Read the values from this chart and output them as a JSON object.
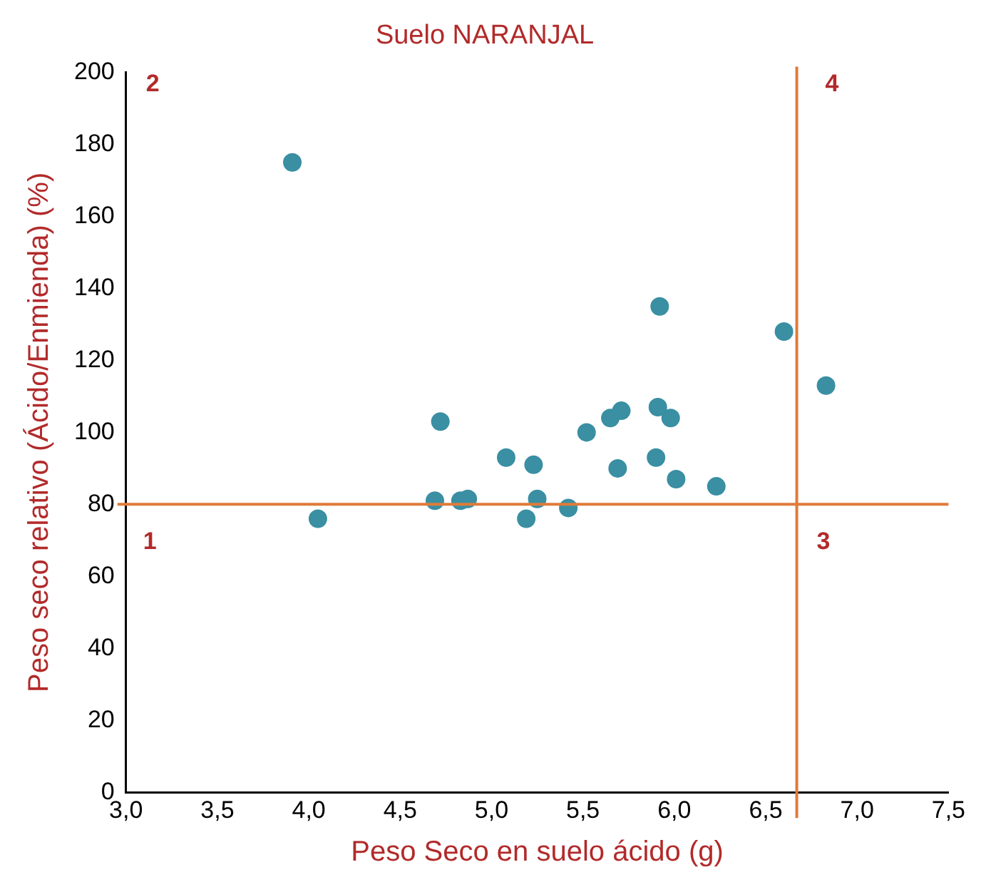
{
  "chart_data": {
    "type": "scatter",
    "title": "Suelo NARANJAL",
    "xlabel": "Peso Seco en suelo ácido (g)",
    "ylabel": "Peso seco relativo (Ácido/Enmienda) (%)",
    "series": [
      {
        "color": "#3a8fa3",
        "x": [
          3.91,
          4.05,
          4.69,
          4.72,
          4.83,
          4.87,
          5.08,
          5.19,
          5.23,
          5.25,
          5.42,
          5.52,
          5.65,
          5.69,
          5.71,
          5.92,
          5.9,
          5.91,
          5.98,
          6.01,
          6.23,
          6.6,
          6.83
        ],
        "values": [
          175,
          76,
          81,
          103,
          81,
          81.5,
          93,
          76,
          91,
          81.5,
          79,
          100,
          104,
          90,
          106,
          135,
          93,
          107,
          104,
          87,
          85,
          128,
          113
        ]
      }
    ],
    "xlim": [
      3.0,
      7.5
    ],
    "xticks": [
      {
        "value": 3.0,
        "label": "3,0"
      },
      {
        "value": 3.5,
        "label": "3,5"
      },
      {
        "value": 4.0,
        "label": "4,0"
      },
      {
        "value": 4.5,
        "label": "4,5"
      },
      {
        "value": 5.0,
        "label": "5,0"
      },
      {
        "value": 5.5,
        "label": "5,5"
      },
      {
        "value": 6.0,
        "label": "6,0"
      },
      {
        "value": 6.5,
        "label": "6,5"
      },
      {
        "value": 7.0,
        "label": "7,0"
      },
      {
        "value": 7.5,
        "label": "7,5"
      }
    ],
    "ylim": [
      0,
      200
    ],
    "yticks": [
      0,
      20,
      40,
      60,
      80,
      100,
      120,
      140,
      160,
      180,
      200
    ],
    "ref_lines": [
      {
        "axis": "y",
        "value": 80,
        "color": "#e07b39"
      },
      {
        "axis": "x",
        "value": 6.67,
        "color": "#e07b39"
      }
    ],
    "annotations": [
      "1",
      "2",
      "3",
      "4"
    ],
    "grid": false,
    "legend": false,
    "marker": "circle"
  }
}
